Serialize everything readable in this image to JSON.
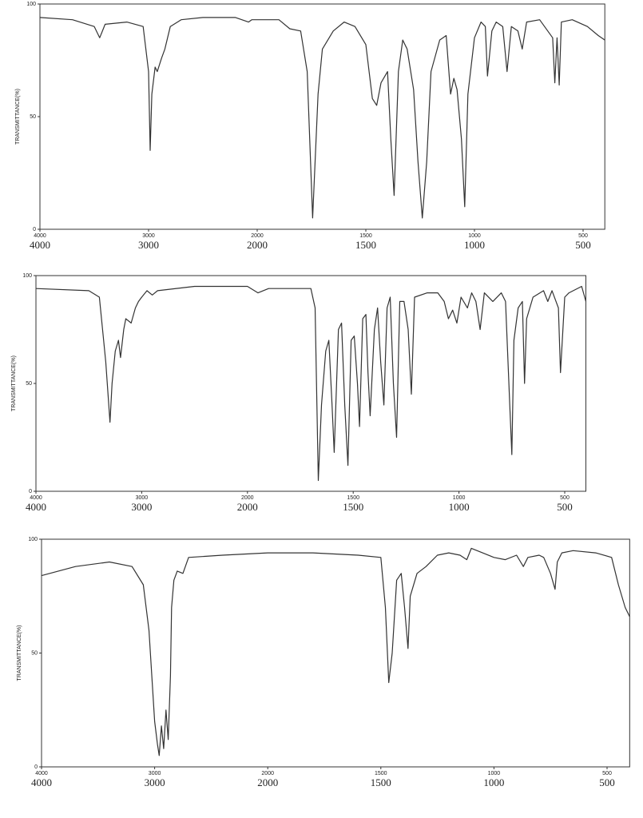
{
  "chart_data": [
    {
      "type": "line",
      "ylabel": "TRANSMITTANCE(%)",
      "color": "#333333",
      "grid": false,
      "xlim": [
        4000,
        400
      ],
      "ylim": [
        0,
        100
      ],
      "yticks": [
        0,
        50,
        100
      ],
      "xticks": [
        4000,
        3000,
        2000,
        1500,
        1000,
        500
      ],
      "x": [
        4000,
        3700,
        3500,
        3450,
        3400,
        3200,
        3050,
        3000,
        2985,
        2970,
        2940,
        2920,
        2880,
        2850,
        2800,
        2700,
        2500,
        2200,
        2080,
        2050,
        1900,
        1850,
        1800,
        1770,
        1745,
        1720,
        1700,
        1650,
        1600,
        1550,
        1500,
        1470,
        1450,
        1430,
        1400,
        1385,
        1370,
        1350,
        1330,
        1310,
        1280,
        1260,
        1240,
        1220,
        1200,
        1160,
        1130,
        1110,
        1095,
        1080,
        1060,
        1045,
        1030,
        1000,
        970,
        950,
        940,
        920,
        900,
        870,
        850,
        830,
        800,
        780,
        760,
        700,
        640,
        630,
        620,
        610,
        600,
        550,
        480,
        430,
        400
      ],
      "values": [
        94,
        93,
        90,
        85,
        91,
        92,
        90,
        70,
        35,
        60,
        72,
        70,
        76,
        80,
        90,
        93,
        94,
        94,
        92,
        93,
        93,
        89,
        88,
        70,
        5,
        60,
        80,
        88,
        92,
        90,
        82,
        58,
        55,
        65,
        70,
        40,
        15,
        70,
        84,
        80,
        62,
        30,
        5,
        30,
        70,
        84,
        86,
        60,
        67,
        62,
        40,
        10,
        60,
        85,
        92,
        90,
        68,
        88,
        92,
        90,
        70,
        90,
        88,
        80,
        92,
        93,
        85,
        65,
        85,
        64,
        92,
        93,
        90,
        86,
        84
      ]
    },
    {
      "type": "line",
      "ylabel": "TRANSMITTANCE(%)",
      "color": "#333333",
      "grid": false,
      "xlim": [
        4000,
        400
      ],
      "ylim": [
        0,
        100
      ],
      "yticks": [
        0,
        50,
        100
      ],
      "xticks": [
        4000,
        3000,
        2000,
        1500,
        1000,
        500
      ],
      "x": [
        4000,
        3500,
        3400,
        3340,
        3300,
        3280,
        3250,
        3220,
        3200,
        3170,
        3150,
        3100,
        3060,
        3030,
        3000,
        2950,
        2900,
        2850,
        2500,
        2000,
        1950,
        1900,
        1700,
        1680,
        1665,
        1650,
        1630,
        1615,
        1600,
        1590,
        1570,
        1555,
        1540,
        1525,
        1510,
        1495,
        1480,
        1470,
        1455,
        1440,
        1430,
        1420,
        1400,
        1385,
        1370,
        1355,
        1340,
        1325,
        1310,
        1295,
        1280,
        1260,
        1240,
        1225,
        1210,
        1150,
        1100,
        1070,
        1050,
        1030,
        1010,
        990,
        960,
        940,
        920,
        900,
        880,
        840,
        800,
        780,
        760,
        750,
        740,
        720,
        700,
        690,
        680,
        650,
        600,
        580,
        560,
        530,
        520,
        500,
        480,
        420,
        400
      ],
      "values": [
        94,
        93,
        90,
        60,
        32,
        50,
        65,
        70,
        62,
        75,
        80,
        78,
        85,
        88,
        90,
        93,
        91,
        93,
        95,
        95,
        92,
        94,
        94,
        85,
        5,
        40,
        65,
        70,
        40,
        18,
        75,
        78,
        40,
        12,
        70,
        72,
        50,
        30,
        80,
        82,
        55,
        35,
        75,
        85,
        60,
        40,
        85,
        90,
        50,
        25,
        88,
        88,
        75,
        45,
        90,
        92,
        92,
        88,
        80,
        84,
        78,
        90,
        85,
        92,
        88,
        75,
        92,
        88,
        92,
        88,
        40,
        17,
        70,
        85,
        88,
        50,
        80,
        90,
        93,
        88,
        93,
        85,
        55,
        90,
        92,
        95,
        88
      ]
    },
    {
      "type": "line",
      "ylabel": "TRANSMITTANCE(%)",
      "color": "#333333",
      "grid": false,
      "xlim": [
        4000,
        400
      ],
      "ylim": [
        0,
        100
      ],
      "yticks": [
        0,
        50,
        100
      ],
      "xticks": [
        4000,
        3000,
        2000,
        1500,
        1000,
        500
      ],
      "x": [
        4000,
        3700,
        3400,
        3200,
        3100,
        3050,
        3000,
        2975,
        2960,
        2940,
        2920,
        2900,
        2880,
        2860,
        2850,
        2830,
        2800,
        2750,
        2700,
        2400,
        2000,
        1800,
        1600,
        1500,
        1480,
        1465,
        1450,
        1430,
        1410,
        1395,
        1380,
        1370,
        1340,
        1300,
        1250,
        1200,
        1150,
        1120,
        1100,
        1050,
        1000,
        950,
        900,
        870,
        850,
        800,
        780,
        750,
        730,
        720,
        700,
        650,
        550,
        480,
        450,
        420,
        400
      ],
      "values": [
        84,
        88,
        90,
        88,
        80,
        60,
        20,
        10,
        5,
        18,
        8,
        25,
        12,
        40,
        70,
        82,
        86,
        85,
        92,
        93,
        94,
        94,
        93,
        92,
        70,
        37,
        50,
        82,
        85,
        70,
        52,
        75,
        85,
        88,
        93,
        94,
        93,
        91,
        96,
        94,
        92,
        91,
        93,
        88,
        92,
        93,
        92,
        85,
        78,
        90,
        94,
        95,
        94,
        92,
        80,
        70,
        66
      ]
    }
  ]
}
